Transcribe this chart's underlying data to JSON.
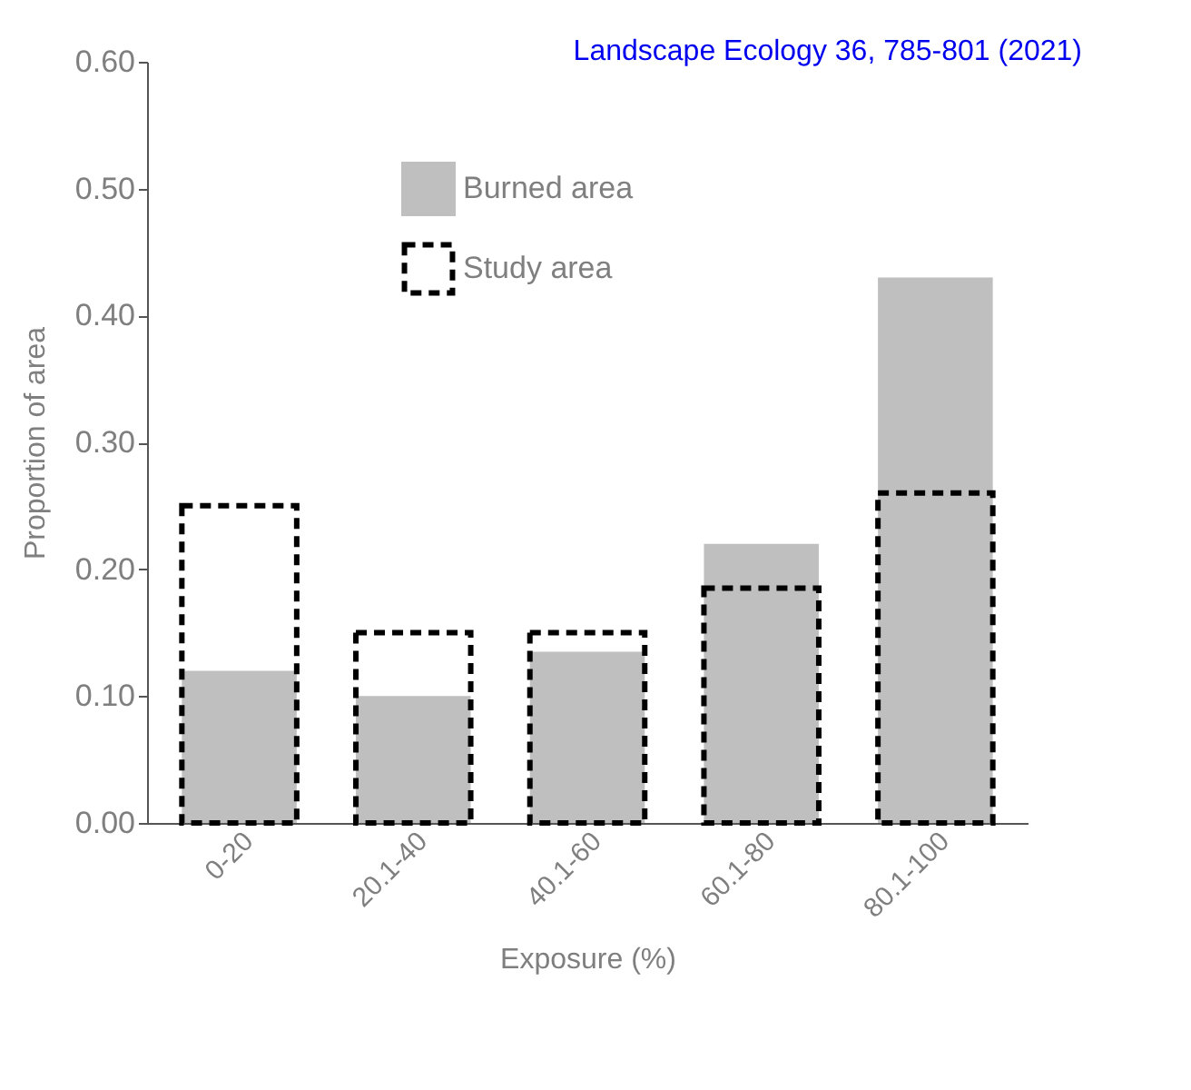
{
  "chart_data": {
    "type": "bar",
    "xlabel": "Exposure (%)",
    "ylabel": "Proportion of area",
    "annotations": [
      "Landscape Ecology 36, 785-801 (2021)"
    ],
    "categories": [
      "0-20",
      "20.1-40",
      "40.1-60",
      "60.1-80",
      "80.1-100"
    ],
    "series": [
      {
        "name": "Burned area",
        "color": "#bfbfbf",
        "values": [
          0.12,
          0.1,
          0.135,
          0.22,
          0.43
        ]
      },
      {
        "name": "Study area",
        "color": "#000000",
        "line_style": "dashed",
        "values": [
          0.25,
          0.15,
          0.15,
          0.185,
          0.26
        ]
      }
    ],
    "ylim": [
      0,
      0.6
    ],
    "yticks": [
      {
        "value": 0,
        "label": "0.00"
      },
      {
        "value": 0.1,
        "label": "0.10"
      },
      {
        "value": 0.2,
        "label": "0.20"
      },
      {
        "value": 0.3,
        "label": "0.30"
      },
      {
        "value": 0.4,
        "label": "0.40"
      },
      {
        "value": 0.5,
        "label": "0.50"
      },
      {
        "value": 0.6,
        "label": "0.60"
      }
    ],
    "grid": false,
    "legend": "top"
  }
}
